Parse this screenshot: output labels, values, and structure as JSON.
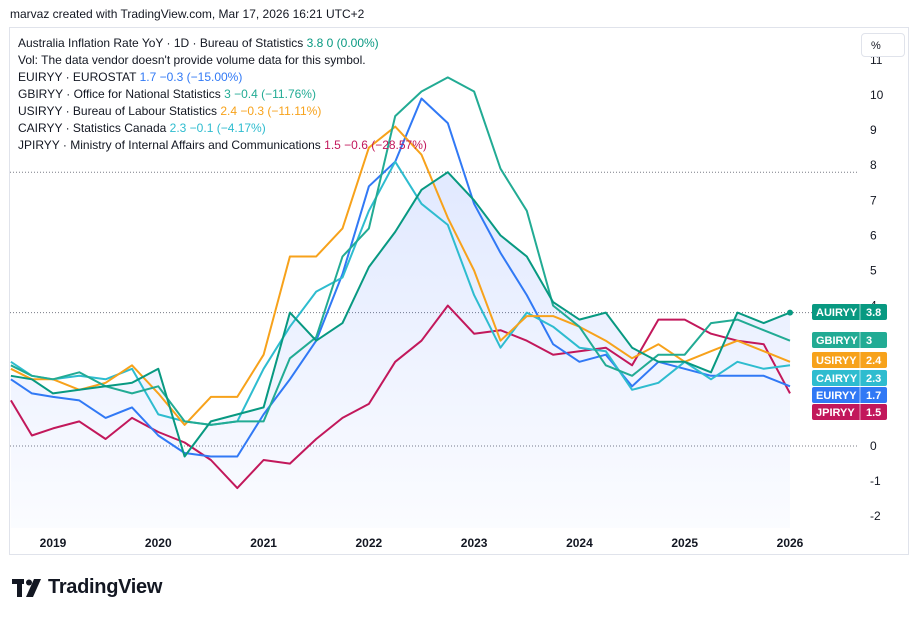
{
  "caption": "marvaz created with TradingView.com, Mar 17, 2026 16:21 UTC+2",
  "scale_button": "%",
  "brand": "TradingView",
  "legend": {
    "main": {
      "name": "Australia Inflation Rate YoY · 1D · Bureau of Statistics",
      "value": "3.8",
      "change": "0 (0.00%)",
      "color": "#089981"
    },
    "vol": "Vol: The data vendor doesn't provide volume data for this symbol.",
    "compare": [
      {
        "name": "EUIRYY · EUROSTAT",
        "value": "1.7",
        "change": "−0.3 (−15.00%)",
        "color": "#3179f5"
      },
      {
        "name": "GBIRYY · Office for National Statistics",
        "value": "3",
        "change": "−0.4 (−11.76%)",
        "color": "#22ab94"
      },
      {
        "name": "USIRYY · Bureau of Labour Statistics",
        "value": "2.4",
        "change": "−0.3 (−11.11%)",
        "color": "#f7a21b"
      },
      {
        "name": "CAIRYY · Statistics Canada",
        "value": "2.3",
        "change": "−0.1 (−4.17%)",
        "color": "#2ebccf"
      },
      {
        "name": "JPIRYY · Ministry of Internal Affairs and Communications",
        "value": "1.5",
        "change": "−0.6 (−28.57%)",
        "color": "#c2185b"
      }
    ]
  },
  "chart_data": {
    "type": "line",
    "x_unit": "year",
    "x_ticks": [
      2019,
      2020,
      2021,
      2022,
      2023,
      2024,
      2025,
      2026
    ],
    "y_ticks": [
      -2,
      -1,
      0,
      1,
      2,
      3,
      4,
      5,
      6,
      7,
      8,
      9,
      10,
      11
    ],
    "y_range": [
      -2.2,
      11.0
    ],
    "grid": false,
    "legend_placement": "top-left",
    "series": [
      {
        "name": "JPIRYY",
        "color": "#c2185b",
        "label_value": "1.5",
        "points": [
          [
            2018.6,
            1.3
          ],
          [
            2018.8,
            0.3
          ],
          [
            2019.0,
            0.5
          ],
          [
            2019.25,
            0.7
          ],
          [
            2019.5,
            0.2
          ],
          [
            2019.75,
            0.8
          ],
          [
            2020.0,
            0.4
          ],
          [
            2020.25,
            0.1
          ],
          [
            2020.5,
            -0.4
          ],
          [
            2020.75,
            -1.2
          ],
          [
            2021.0,
            -0.4
          ],
          [
            2021.25,
            -0.5
          ],
          [
            2021.5,
            0.2
          ],
          [
            2021.75,
            0.8
          ],
          [
            2022.0,
            1.2
          ],
          [
            2022.25,
            2.4
          ],
          [
            2022.5,
            3.0
          ],
          [
            2022.75,
            4.0
          ],
          [
            2023.0,
            3.2
          ],
          [
            2023.25,
            3.3
          ],
          [
            2023.5,
            3.0
          ],
          [
            2023.75,
            2.6
          ],
          [
            2024.0,
            2.7
          ],
          [
            2024.25,
            2.8
          ],
          [
            2024.5,
            2.3
          ],
          [
            2024.75,
            3.6
          ],
          [
            2025.0,
            3.6
          ],
          [
            2025.25,
            3.2
          ],
          [
            2025.5,
            3.0
          ],
          [
            2025.75,
            2.9
          ],
          [
            2026.0,
            1.5
          ]
        ]
      },
      {
        "name": "EUIRYY",
        "color": "#3179f5",
        "label_value": "1.7",
        "points": [
          [
            2018.6,
            1.9
          ],
          [
            2018.8,
            1.5
          ],
          [
            2019.0,
            1.4
          ],
          [
            2019.25,
            1.3
          ],
          [
            2019.5,
            0.8
          ],
          [
            2019.75,
            1.1
          ],
          [
            2020.0,
            0.3
          ],
          [
            2020.25,
            -0.2
          ],
          [
            2020.5,
            -0.3
          ],
          [
            2020.75,
            -0.3
          ],
          [
            2021.0,
            0.9
          ],
          [
            2021.25,
            1.9
          ],
          [
            2021.5,
            3.0
          ],
          [
            2021.75,
            4.9
          ],
          [
            2022.0,
            7.4
          ],
          [
            2022.25,
            8.1
          ],
          [
            2022.5,
            9.9
          ],
          [
            2022.75,
            9.2
          ],
          [
            2023.0,
            6.9
          ],
          [
            2023.25,
            5.5
          ],
          [
            2023.5,
            4.3
          ],
          [
            2023.75,
            2.9
          ],
          [
            2024.0,
            2.4
          ],
          [
            2024.25,
            2.6
          ],
          [
            2024.5,
            1.7
          ],
          [
            2024.75,
            2.4
          ],
          [
            2025.0,
            2.2
          ],
          [
            2025.25,
            2.0
          ],
          [
            2025.5,
            2.0
          ],
          [
            2025.75,
            2.0
          ],
          [
            2026.0,
            1.7
          ]
        ]
      },
      {
        "name": "CAIRYY",
        "color": "#2ebccf",
        "label_value": "2.3",
        "points": [
          [
            2018.6,
            2.4
          ],
          [
            2018.8,
            2.0
          ],
          [
            2019.0,
            1.9
          ],
          [
            2019.25,
            2.0
          ],
          [
            2019.5,
            1.9
          ],
          [
            2019.75,
            2.2
          ],
          [
            2020.0,
            0.9
          ],
          [
            2020.25,
            0.7
          ],
          [
            2020.5,
            0.6
          ],
          [
            2020.75,
            0.7
          ],
          [
            2021.0,
            2.2
          ],
          [
            2021.25,
            3.4
          ],
          [
            2021.5,
            4.4
          ],
          [
            2021.75,
            4.8
          ],
          [
            2022.0,
            6.7
          ],
          [
            2022.25,
            8.1
          ],
          [
            2022.5,
            6.9
          ],
          [
            2022.75,
            6.3
          ],
          [
            2023.0,
            4.3
          ],
          [
            2023.25,
            2.8
          ],
          [
            2023.5,
            3.8
          ],
          [
            2023.75,
            3.4
          ],
          [
            2024.0,
            2.8
          ],
          [
            2024.25,
            2.7
          ],
          [
            2024.5,
            1.6
          ],
          [
            2024.75,
            1.8
          ],
          [
            2025.0,
            2.4
          ],
          [
            2025.25,
            1.9
          ],
          [
            2025.5,
            2.4
          ],
          [
            2025.75,
            2.2
          ],
          [
            2026.0,
            2.3
          ]
        ]
      },
      {
        "name": "USIRYY",
        "color": "#f7a21b",
        "label_value": "2.4",
        "points": [
          [
            2018.6,
            2.2
          ],
          [
            2018.8,
            1.9
          ],
          [
            2019.0,
            1.9
          ],
          [
            2019.25,
            1.6
          ],
          [
            2019.5,
            1.8
          ],
          [
            2019.75,
            2.3
          ],
          [
            2020.0,
            1.5
          ],
          [
            2020.25,
            0.6
          ],
          [
            2020.5,
            1.4
          ],
          [
            2020.75,
            1.4
          ],
          [
            2021.0,
            2.6
          ],
          [
            2021.25,
            5.4
          ],
          [
            2021.5,
            5.4
          ],
          [
            2021.75,
            6.2
          ],
          [
            2022.0,
            8.5
          ],
          [
            2022.25,
            9.1
          ],
          [
            2022.5,
            8.3
          ],
          [
            2022.75,
            6.5
          ],
          [
            2023.0,
            5.0
          ],
          [
            2023.25,
            3.0
          ],
          [
            2023.5,
            3.7
          ],
          [
            2023.75,
            3.7
          ],
          [
            2024.0,
            3.4
          ],
          [
            2024.25,
            3.0
          ],
          [
            2024.5,
            2.5
          ],
          [
            2024.75,
            2.9
          ],
          [
            2025.0,
            2.4
          ],
          [
            2025.25,
            2.7
          ],
          [
            2025.5,
            3.0
          ],
          [
            2025.75,
            2.7
          ],
          [
            2026.0,
            2.4
          ]
        ]
      },
      {
        "name": "GBIRYY",
        "color": "#22ab94",
        "label_value": "3",
        "points": [
          [
            2018.6,
            2.3
          ],
          [
            2018.8,
            2.0
          ],
          [
            2019.0,
            1.9
          ],
          [
            2019.25,
            2.1
          ],
          [
            2019.5,
            1.7
          ],
          [
            2019.75,
            1.5
          ],
          [
            2020.0,
            1.7
          ],
          [
            2020.25,
            0.7
          ],
          [
            2020.5,
            0.6
          ],
          [
            2020.75,
            0.7
          ],
          [
            2021.0,
            0.7
          ],
          [
            2021.25,
            2.5
          ],
          [
            2021.5,
            3.1
          ],
          [
            2021.75,
            5.4
          ],
          [
            2022.0,
            6.2
          ],
          [
            2022.25,
            9.4
          ],
          [
            2022.5,
            10.1
          ],
          [
            2022.75,
            10.5
          ],
          [
            2023.0,
            10.1
          ],
          [
            2023.25,
            7.9
          ],
          [
            2023.5,
            6.7
          ],
          [
            2023.75,
            4.0
          ],
          [
            2024.0,
            3.4
          ],
          [
            2024.25,
            2.3
          ],
          [
            2024.5,
            2.0
          ],
          [
            2024.75,
            2.6
          ],
          [
            2025.0,
            2.6
          ],
          [
            2025.25,
            3.5
          ],
          [
            2025.5,
            3.6
          ],
          [
            2025.75,
            3.3
          ],
          [
            2026.0,
            3.0
          ]
        ]
      },
      {
        "name": "AUIRYY",
        "color": "#089981",
        "label_value": "3.8",
        "filled": true,
        "points": [
          [
            2018.6,
            2.0
          ],
          [
            2018.8,
            1.9
          ],
          [
            2019.0,
            1.5
          ],
          [
            2019.25,
            1.6
          ],
          [
            2019.5,
            1.7
          ],
          [
            2019.75,
            1.8
          ],
          [
            2020.0,
            2.2
          ],
          [
            2020.25,
            -0.3
          ],
          [
            2020.5,
            0.7
          ],
          [
            2020.75,
            0.9
          ],
          [
            2021.0,
            1.1
          ],
          [
            2021.25,
            3.8
          ],
          [
            2021.5,
            3.0
          ],
          [
            2021.75,
            3.5
          ],
          [
            2022.0,
            5.1
          ],
          [
            2022.25,
            6.1
          ],
          [
            2022.5,
            7.3
          ],
          [
            2022.75,
            7.8
          ],
          [
            2023.0,
            7.0
          ],
          [
            2023.25,
            6.0
          ],
          [
            2023.5,
            5.4
          ],
          [
            2023.75,
            4.1
          ],
          [
            2024.0,
            3.6
          ],
          [
            2024.25,
            3.8
          ],
          [
            2024.5,
            2.8
          ],
          [
            2024.75,
            2.4
          ],
          [
            2025.0,
            2.4
          ],
          [
            2025.25,
            2.1
          ],
          [
            2025.5,
            3.8
          ],
          [
            2025.75,
            3.5
          ],
          [
            2026.0,
            3.8
          ]
        ]
      }
    ],
    "price_labels": [
      {
        "name": "AUIRYY",
        "value": "3.8",
        "color": "#089981"
      },
      {
        "name": "GBIRYY",
        "value": "3",
        "color": "#22ab94"
      },
      {
        "name": "USIRYY",
        "value": "2.4",
        "color": "#f7a21b"
      },
      {
        "name": "CAIRYY",
        "value": "2.3",
        "color": "#2ebccf"
      },
      {
        "name": "EUIRYY",
        "value": "1.7",
        "color": "#3179f5"
      },
      {
        "name": "JPIRYY",
        "value": "1.5",
        "color": "#c2185b"
      }
    ]
  }
}
